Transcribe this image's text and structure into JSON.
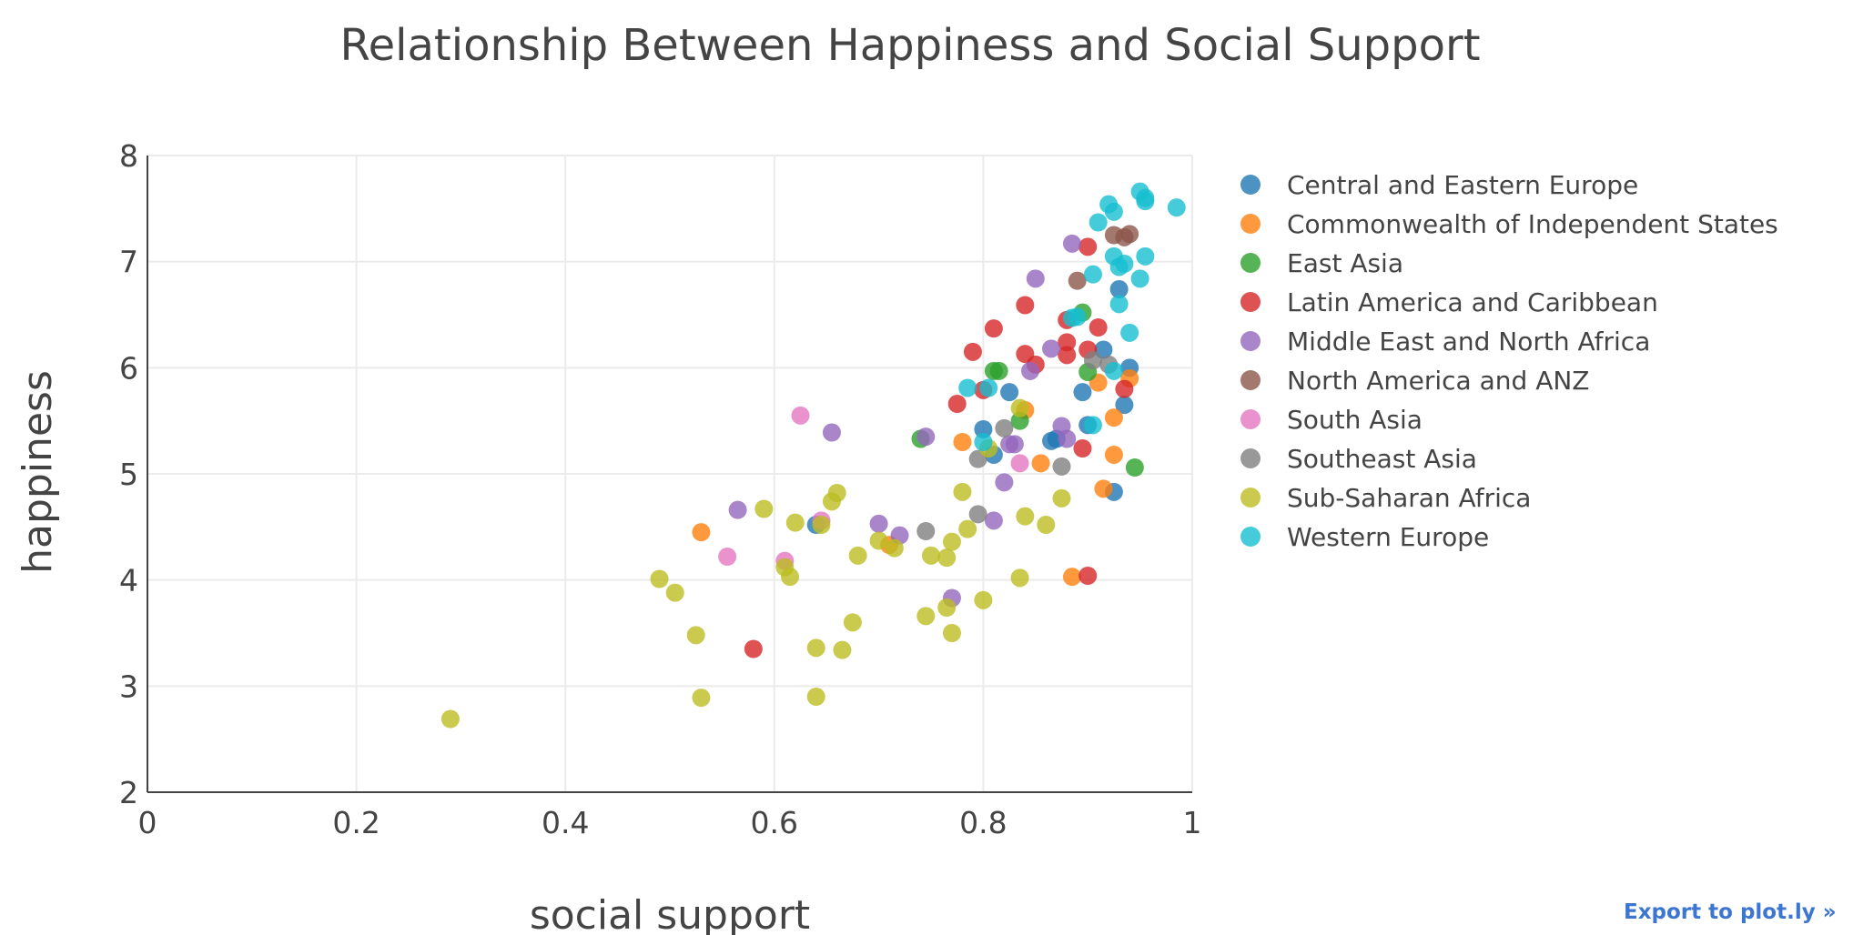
{
  "export_link_label": "Export to plot.ly »",
  "chart_data": {
    "type": "scatter",
    "title": "Relationship Between Happiness and Social Support",
    "xlabel": "social support",
    "ylabel": "happiness",
    "xlim": [
      0,
      1
    ],
    "ylim": [
      2,
      8
    ],
    "xticks": [
      0,
      0.2,
      0.4,
      0.6,
      0.8,
      1
    ],
    "xtick_labels": [
      "0",
      "0.2",
      "0.4",
      "0.6",
      "0.8",
      "1"
    ],
    "yticks": [
      2,
      3,
      4,
      5,
      6,
      7,
      8
    ],
    "ytick_labels": [
      "2",
      "3",
      "4",
      "5",
      "6",
      "7",
      "8"
    ],
    "grid": true,
    "legend_position": "right",
    "series": [
      {
        "name": "Central and Eastern Europe",
        "color": "#1f77b4",
        "points": [
          [
            0.64,
            4.52
          ],
          [
            0.8,
            5.42
          ],
          [
            0.81,
            5.18
          ],
          [
            0.825,
            5.77
          ],
          [
            0.865,
            5.31
          ],
          [
            0.87,
            5.33
          ],
          [
            0.895,
            5.77
          ],
          [
            0.9,
            5.46
          ],
          [
            0.915,
            6.17
          ],
          [
            0.925,
            4.83
          ],
          [
            0.93,
            6.74
          ],
          [
            0.935,
            5.65
          ],
          [
            0.94,
            6.0
          ]
        ]
      },
      {
        "name": "Commonwealth of Independent States",
        "color": "#ff7f0e",
        "points": [
          [
            0.53,
            4.45
          ],
          [
            0.71,
            4.33
          ],
          [
            0.78,
            5.3
          ],
          [
            0.84,
            5.6
          ],
          [
            0.855,
            5.1
          ],
          [
            0.885,
            4.03
          ],
          [
            0.915,
            4.86
          ],
          [
            0.91,
            5.86
          ],
          [
            0.925,
            5.53
          ],
          [
            0.925,
            5.18
          ],
          [
            0.94,
            5.9
          ]
        ]
      },
      {
        "name": "East Asia",
        "color": "#2ca02c",
        "points": [
          [
            0.74,
            5.33
          ],
          [
            0.81,
            5.97
          ],
          [
            0.815,
            5.97
          ],
          [
            0.835,
            5.5
          ],
          [
            0.895,
            6.52
          ],
          [
            0.9,
            5.96
          ],
          [
            0.945,
            5.06
          ]
        ]
      },
      {
        "name": "Latin America and Caribbean",
        "color": "#d62728",
        "points": [
          [
            0.58,
            3.35
          ],
          [
            0.775,
            5.66
          ],
          [
            0.79,
            6.15
          ],
          [
            0.8,
            5.79
          ],
          [
            0.81,
            6.37
          ],
          [
            0.84,
            6.59
          ],
          [
            0.84,
            6.13
          ],
          [
            0.85,
            6.03
          ],
          [
            0.88,
            6.45
          ],
          [
            0.88,
            6.24
          ],
          [
            0.88,
            6.12
          ],
          [
            0.895,
            5.24
          ],
          [
            0.9,
            6.17
          ],
          [
            0.9,
            7.14
          ],
          [
            0.9,
            4.04
          ],
          [
            0.91,
            6.38
          ],
          [
            0.935,
            5.8
          ]
        ]
      },
      {
        "name": "Middle East and North Africa",
        "color": "#9467bd",
        "points": [
          [
            0.565,
            4.66
          ],
          [
            0.655,
            5.39
          ],
          [
            0.7,
            4.53
          ],
          [
            0.72,
            4.42
          ],
          [
            0.745,
            5.35
          ],
          [
            0.77,
            3.83
          ],
          [
            0.81,
            4.56
          ],
          [
            0.82,
            4.92
          ],
          [
            0.825,
            5.28
          ],
          [
            0.83,
            5.28
          ],
          [
            0.845,
            5.97
          ],
          [
            0.85,
            6.84
          ],
          [
            0.865,
            6.18
          ],
          [
            0.875,
            5.45
          ],
          [
            0.88,
            5.33
          ],
          [
            0.885,
            7.17
          ]
        ]
      },
      {
        "name": "North America and ANZ",
        "color": "#8c564b",
        "points": [
          [
            0.89,
            6.82
          ],
          [
            0.925,
            7.25
          ],
          [
            0.935,
            7.23
          ],
          [
            0.94,
            7.26
          ]
        ]
      },
      {
        "name": "South Asia",
        "color": "#e377c2",
        "points": [
          [
            0.555,
            4.22
          ],
          [
            0.61,
            4.18
          ],
          [
            0.625,
            5.55
          ],
          [
            0.645,
            4.56
          ],
          [
            0.835,
            5.1
          ]
        ]
      },
      {
        "name": "Southeast Asia",
        "color": "#7f7f7f",
        "points": [
          [
            0.745,
            4.46
          ],
          [
            0.795,
            5.14
          ],
          [
            0.795,
            4.62
          ],
          [
            0.82,
            5.43
          ],
          [
            0.875,
            5.07
          ],
          [
            0.905,
            6.07
          ],
          [
            0.92,
            6.03
          ]
        ]
      },
      {
        "name": "Sub-Saharan Africa",
        "color": "#bcbd22",
        "points": [
          [
            0.29,
            2.69
          ],
          [
            0.49,
            4.01
          ],
          [
            0.505,
            3.88
          ],
          [
            0.525,
            3.48
          ],
          [
            0.53,
            2.89
          ],
          [
            0.59,
            4.67
          ],
          [
            0.61,
            4.12
          ],
          [
            0.615,
            4.03
          ],
          [
            0.62,
            4.54
          ],
          [
            0.64,
            3.36
          ],
          [
            0.64,
            2.9
          ],
          [
            0.645,
            4.52
          ],
          [
            0.655,
            4.74
          ],
          [
            0.66,
            4.82
          ],
          [
            0.665,
            3.34
          ],
          [
            0.675,
            3.6
          ],
          [
            0.68,
            4.23
          ],
          [
            0.7,
            4.37
          ],
          [
            0.715,
            4.3
          ],
          [
            0.745,
            3.66
          ],
          [
            0.75,
            4.23
          ],
          [
            0.765,
            4.21
          ],
          [
            0.765,
            3.74
          ],
          [
            0.77,
            4.36
          ],
          [
            0.77,
            3.5
          ],
          [
            0.78,
            4.83
          ],
          [
            0.785,
            4.48
          ],
          [
            0.8,
            3.81
          ],
          [
            0.805,
            5.24
          ],
          [
            0.835,
            5.62
          ],
          [
            0.835,
            4.02
          ],
          [
            0.84,
            4.6
          ],
          [
            0.86,
            4.52
          ],
          [
            0.875,
            4.77
          ]
        ]
      },
      {
        "name": "Western Europe",
        "color": "#17becf",
        "points": [
          [
            0.785,
            5.81
          ],
          [
            0.8,
            5.3
          ],
          [
            0.805,
            5.81
          ],
          [
            0.885,
            6.47
          ],
          [
            0.89,
            6.48
          ],
          [
            0.905,
            5.46
          ],
          [
            0.905,
            6.88
          ],
          [
            0.91,
            7.37
          ],
          [
            0.92,
            7.54
          ],
          [
            0.925,
            7.47
          ],
          [
            0.925,
            7.05
          ],
          [
            0.925,
            5.97
          ],
          [
            0.93,
            6.95
          ],
          [
            0.93,
            6.6
          ],
          [
            0.935,
            6.98
          ],
          [
            0.94,
            6.33
          ],
          [
            0.95,
            7.66
          ],
          [
            0.955,
            7.57
          ],
          [
            0.955,
            7.6
          ],
          [
            0.95,
            6.84
          ],
          [
            0.955,
            7.05
          ],
          [
            0.985,
            7.51
          ]
        ]
      }
    ]
  }
}
